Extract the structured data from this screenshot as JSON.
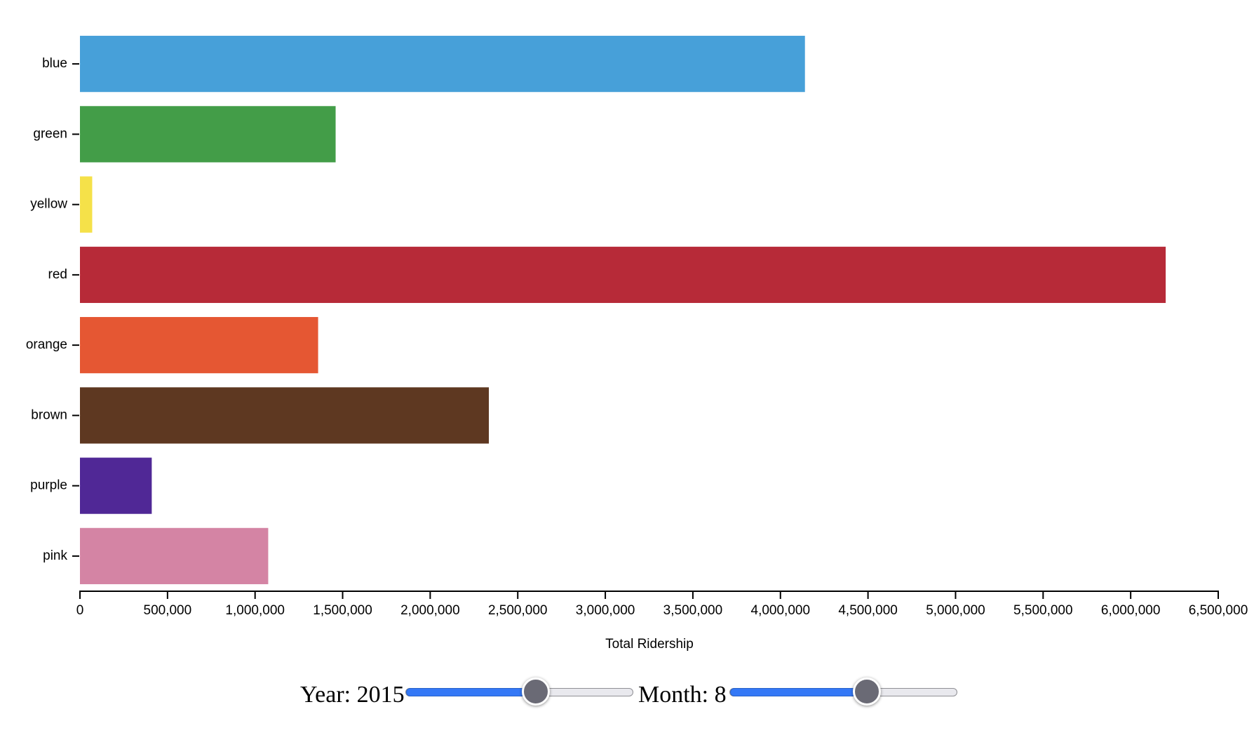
{
  "chart_data": {
    "type": "bar",
    "orientation": "horizontal",
    "categories": [
      "blue",
      "green",
      "yellow",
      "red",
      "orange",
      "brown",
      "purple",
      "pink"
    ],
    "values": [
      4140000,
      1460000,
      70000,
      6200000,
      1360000,
      2335000,
      410000,
      1075000
    ],
    "colors": [
      "#47a0d9",
      "#439d48",
      "#f5e149",
      "#b72a38",
      "#e55733",
      "#5e3821",
      "#502896",
      "#d484a4"
    ],
    "xlim": [
      0,
      6500000
    ],
    "xticks": [
      0,
      500000,
      1000000,
      1500000,
      2000000,
      2500000,
      3000000,
      3500000,
      4000000,
      4500000,
      5000000,
      5500000,
      6000000,
      6500000
    ],
    "xtick_labels": [
      "0",
      "500,000",
      "1,000,000",
      "1,500,000",
      "2,000,000",
      "2,500,000",
      "3,000,000",
      "3,500,000",
      "4,000,000",
      "4,500,000",
      "5,000,000",
      "5,500,000",
      "6,000,000",
      "6,500,000"
    ],
    "xlabel": "Total Ridership",
    "ylabel": "",
    "title": "",
    "grid": false,
    "legend": "none"
  },
  "controls": {
    "year": {
      "label": "Year: 2015",
      "value": 2015,
      "fraction": 0.57
    },
    "month": {
      "label": "Month: 8",
      "value": 8,
      "fraction": 0.6
    }
  }
}
